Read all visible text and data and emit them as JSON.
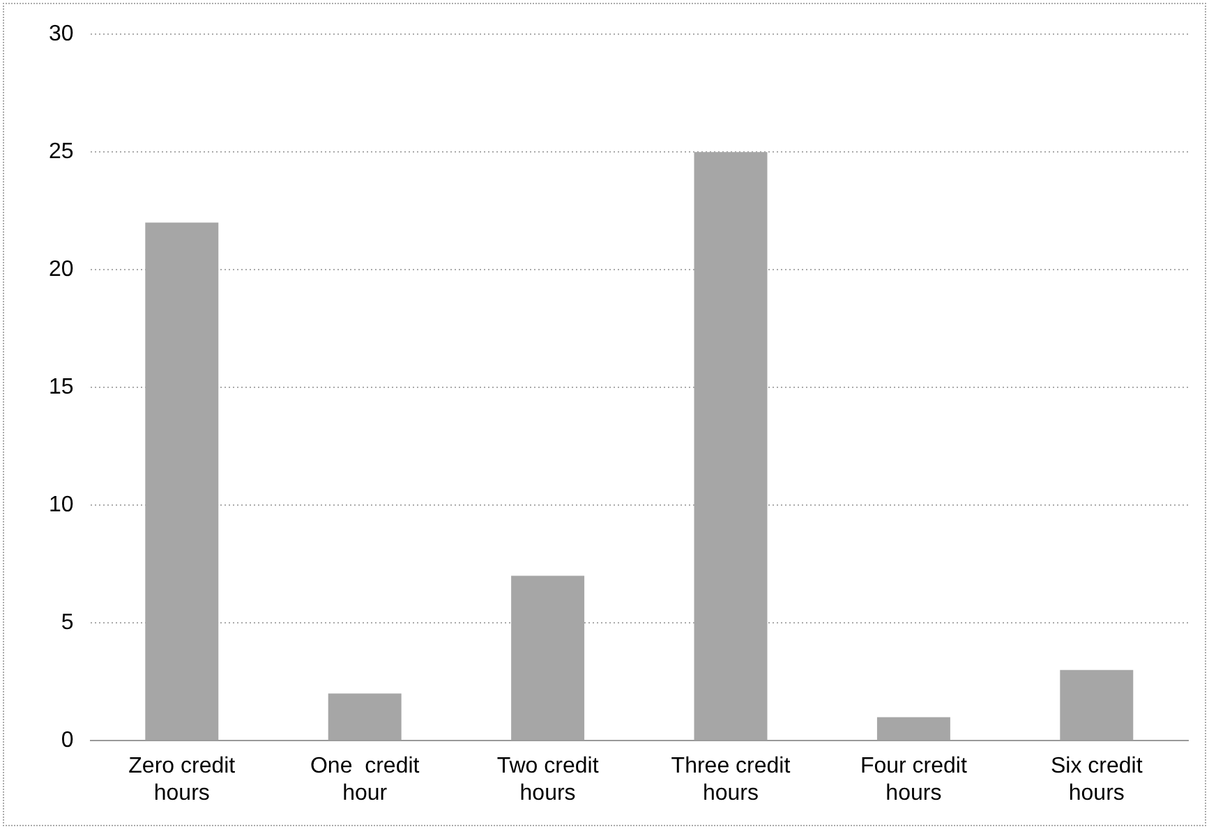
{
  "chart_data": {
    "type": "bar",
    "categories": [
      "Zero credit hours",
      "One  credit hour",
      "Two credit hours",
      "Three credit hours",
      "Four credit hours",
      "Six credit hours"
    ],
    "values": [
      22,
      2,
      7,
      25,
      1,
      3
    ],
    "color": "#a6a6a6",
    "ylim": [
      0,
      30
    ],
    "yticks": [
      0,
      5,
      10,
      15,
      20,
      25,
      30
    ],
    "grid": "y",
    "legend": false
  }
}
